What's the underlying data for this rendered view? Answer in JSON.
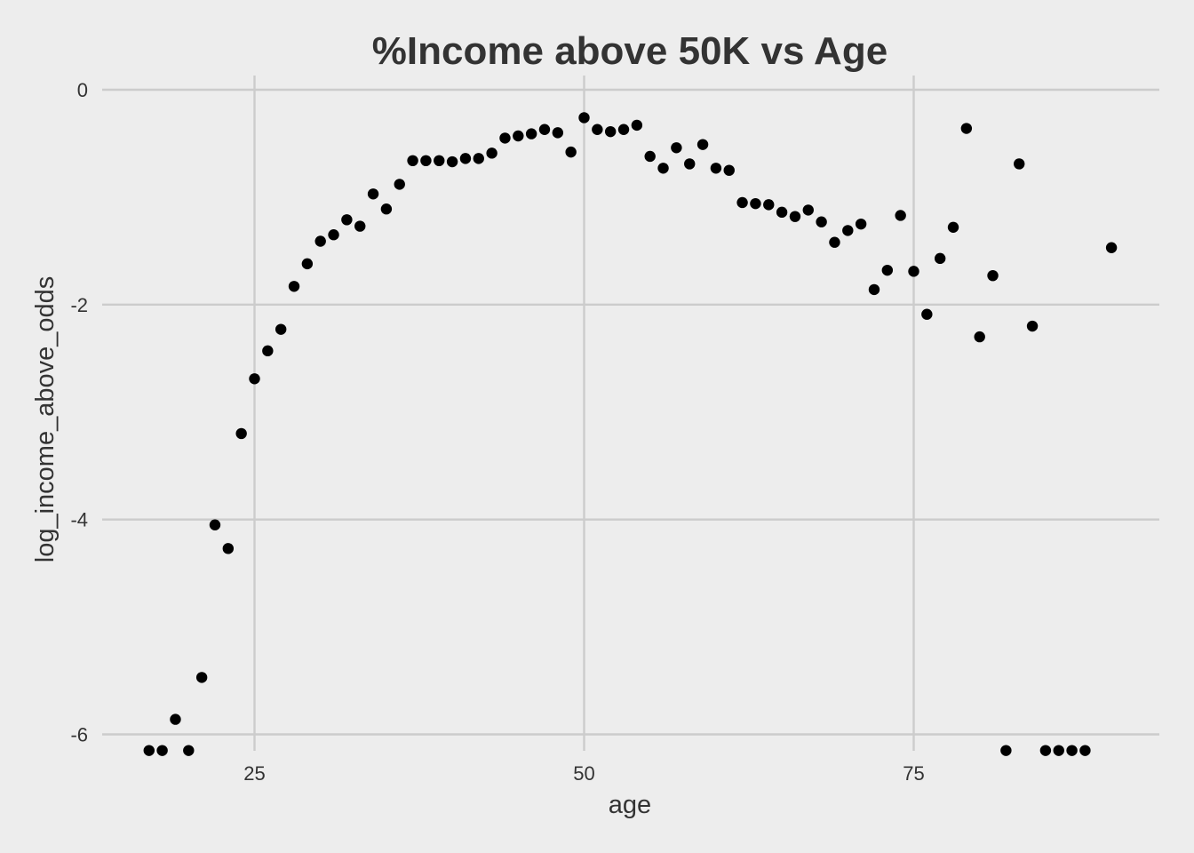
{
  "chart_data": {
    "type": "scatter",
    "title": "%Income above 50K vs Age",
    "xlabel": "age",
    "ylabel": "log_income_above_odds",
    "xlim": [
      12.5,
      91.5
    ],
    "ylim": [
      -6.15,
      0
    ],
    "x_ticks": [
      25,
      50,
      75
    ],
    "x_tick_labels": [
      "25",
      "50",
      "75"
    ],
    "y_ticks": [
      0,
      -2,
      -4,
      -6
    ],
    "y_tick_labels": [
      "0",
      "-2",
      "-4",
      "-6"
    ],
    "grid": true,
    "legend": "none",
    "point_color": "#000000",
    "background_color": "#ededed",
    "grid_color": "#cccccc",
    "x": [
      17,
      18,
      19,
      20,
      21,
      22,
      23,
      24,
      25,
      26,
      27,
      28,
      29,
      30,
      31,
      32,
      33,
      34,
      35,
      36,
      37,
      38,
      39,
      40,
      41,
      42,
      43,
      44,
      45,
      46,
      47,
      48,
      49,
      50,
      51,
      52,
      53,
      54,
      55,
      56,
      57,
      58,
      59,
      60,
      61,
      62,
      63,
      64,
      65,
      66,
      67,
      68,
      69,
      70,
      71,
      72,
      73,
      74,
      75,
      76,
      77,
      78,
      79,
      80,
      81,
      82,
      83,
      84,
      85,
      86,
      87,
      88,
      90
    ],
    "y": [
      -6.15,
      -6.15,
      -5.86,
      -6.15,
      -5.47,
      -4.05,
      -4.27,
      -3.2,
      -2.69,
      -2.43,
      -2.23,
      -1.83,
      -1.62,
      -1.41,
      -1.35,
      -1.21,
      -1.27,
      -0.97,
      -1.11,
      -0.88,
      -0.66,
      -0.66,
      -0.66,
      -0.67,
      -0.64,
      -0.64,
      -0.59,
      -0.45,
      -0.43,
      -0.41,
      -0.37,
      -0.4,
      -0.58,
      -0.26,
      -0.37,
      -0.39,
      -0.37,
      -0.33,
      -0.62,
      -0.73,
      -0.54,
      -0.69,
      -0.51,
      -0.73,
      -0.75,
      -1.05,
      -1.06,
      -1.07,
      -1.14,
      -1.18,
      -1.12,
      -1.23,
      -1.42,
      -1.31,
      -1.25,
      -1.86,
      -1.68,
      -1.17,
      -1.69,
      -2.09,
      -1.57,
      -1.28,
      -0.36,
      -2.3,
      -1.73,
      -6.15,
      -0.69,
      -2.2,
      -6.15,
      -6.15,
      -6.15,
      -6.15,
      -1.47
    ]
  }
}
